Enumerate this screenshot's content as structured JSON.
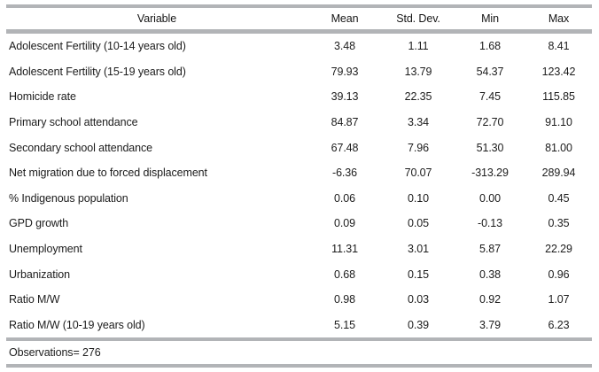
{
  "table": {
    "columns": [
      "Variable",
      "Mean",
      "Std. Dev.",
      "Min",
      "Max"
    ],
    "rows": [
      {
        "variable": "Adolescent Fertility (10-14 years old)",
        "mean": "3.48",
        "std_dev": "1.11",
        "min": "1.68",
        "max": "8.41"
      },
      {
        "variable": "Adolescent Fertility (15-19 years old)",
        "mean": "79.93",
        "std_dev": "13.79",
        "min": "54.37",
        "max": "123.42"
      },
      {
        "variable": "Homicide rate",
        "mean": "39.13",
        "std_dev": "22.35",
        "min": "7.45",
        "max": "115.85"
      },
      {
        "variable": "Primary school attendance",
        "mean": "84.87",
        "std_dev": "3.34",
        "min": "72.70",
        "max": "91.10"
      },
      {
        "variable": "Secondary school attendance",
        "mean": "67.48",
        "std_dev": "7.96",
        "min": "51.30",
        "max": "81.00"
      },
      {
        "variable": "Net migration due to forced displacement",
        "mean": "-6.36",
        "std_dev": "70.07",
        "min": "-313.29",
        "max": "289.94"
      },
      {
        "variable": "% Indigenous population",
        "mean": "0.06",
        "std_dev": "0.10",
        "min": "0.00",
        "max": "0.45"
      },
      {
        "variable": "GPD growth",
        "mean": "0.09",
        "std_dev": "0.05",
        "min": "-0.13",
        "max": "0.35"
      },
      {
        "variable": "Unemployment",
        "mean": "11.31",
        "std_dev": "3.01",
        "min": "5.87",
        "max": "22.29"
      },
      {
        "variable": "Urbanization",
        "mean": "0.68",
        "std_dev": "0.15",
        "min": "0.38",
        "max": "0.96"
      },
      {
        "variable": "Ratio M/W",
        "mean": "0.98",
        "std_dev": "0.03",
        "min": "0.92",
        "max": "1.07"
      },
      {
        "variable": "Ratio M/W (10-19 years old)",
        "mean": "5.15",
        "std_dev": "0.39",
        "min": "3.79",
        "max": "6.23"
      }
    ],
    "footer_label": "Observations=",
    "footer_value": "276",
    "colors": {
      "rule_gray": "#b2b4b7",
      "text": "#1c1c1c",
      "background": "#ffffff"
    }
  }
}
